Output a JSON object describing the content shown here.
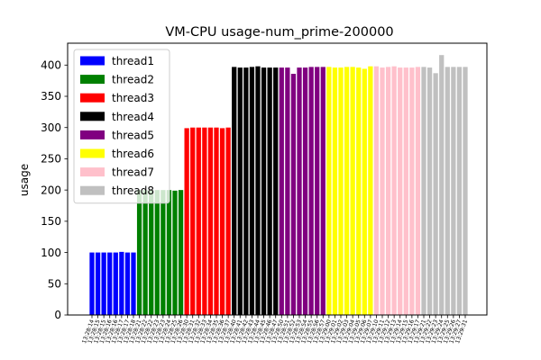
{
  "chart_data": {
    "type": "bar",
    "title": "VM-CPU usage-num_prime-200000",
    "xlabel": "",
    "ylabel": "usage",
    "ylim": [
      0,
      435
    ],
    "yticks": [
      0,
      50,
      100,
      150,
      200,
      250,
      300,
      350,
      400
    ],
    "grid": false,
    "legend_position": "top-left",
    "series": [
      {
        "name": "thread1",
        "color": "#0000ff",
        "x": [
          "13:28:14",
          "13:28:15",
          "13:28:15",
          "13:28:16",
          "13:28:16",
          "13:28:17",
          "13:28:17",
          "13:28:18"
        ],
        "values": [
          100,
          100,
          100,
          100,
          100,
          101,
          100,
          100
        ]
      },
      {
        "name": "thread2",
        "color": "#008000",
        "x": [
          "13:28:21",
          "13:28:22",
          "13:28:22",
          "13:28:23",
          "13:28:23",
          "13:28:24",
          "13:28:25",
          "13:28:26"
        ],
        "values": [
          200,
          200,
          200,
          200,
          200,
          200,
          199,
          200
        ]
      },
      {
        "name": "thread3",
        "color": "#ff0000",
        "x": [
          "13:28:30",
          "13:28:31",
          "13:28:32",
          "13:28:33",
          "13:28:34",
          "13:28:35",
          "13:28:36",
          "13:28:37"
        ],
        "values": [
          299,
          300,
          300,
          300,
          300,
          300,
          299,
          300
        ]
      },
      {
        "name": "thread4",
        "color": "#000000",
        "x": [
          "13:28:40",
          "13:28:41",
          "13:28:42",
          "13:28:43",
          "13:28:44",
          "13:28:45",
          "13:28:46",
          "13:28:47"
        ],
        "values": [
          397,
          396,
          396,
          397,
          398,
          396,
          396,
          396
        ]
      },
      {
        "name": "thread5",
        "color": "#800080",
        "x": [
          "13:28:50",
          "13:28:51",
          "13:28:52",
          "13:28:53",
          "13:28:54",
          "13:28:55",
          "13:28:56",
          "13:28:57"
        ],
        "values": [
          396,
          396,
          386,
          396,
          396,
          397,
          397,
          397
        ]
      },
      {
        "name": "thread6",
        "color": "#ffff00",
        "x": [
          "13:29:00",
          "13:29:01",
          "13:29:02",
          "13:29:03",
          "13:29:04",
          "13:29:05",
          "13:29:06",
          "13:29:07"
        ],
        "values": [
          397,
          396,
          396,
          397,
          397,
          396,
          394,
          398
        ]
      },
      {
        "name": "thread7",
        "color": "#ffc0cb",
        "x": [
          "13:29:10",
          "13:29:11",
          "13:29:12",
          "13:29:13",
          "13:29:14",
          "13:29:15",
          "13:29:16",
          "13:29:17"
        ],
        "values": [
          398,
          396,
          397,
          398,
          396,
          396,
          396,
          397
        ]
      },
      {
        "name": "thread8",
        "color": "#c0c0c0",
        "x": [
          "13:29:21",
          "13:29:22",
          "13:29:23",
          "13:29:24",
          "13:29:25",
          "13:29:26",
          "13:29:27",
          "13:29:31"
        ],
        "values": [
          397,
          396,
          387,
          416,
          397,
          397,
          397,
          397
        ]
      }
    ]
  }
}
